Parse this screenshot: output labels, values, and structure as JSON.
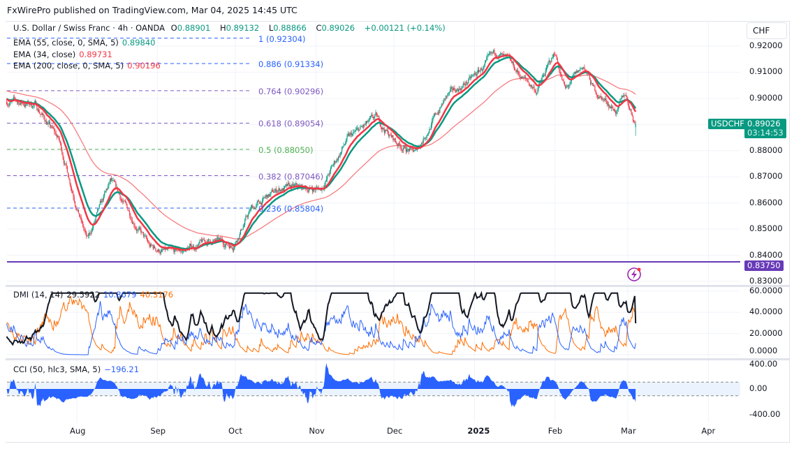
{
  "publisher_line": "FxWirePro published on TradingView.com, Mar 04, 2025 14:45 UTC",
  "symbol": {
    "title": "U.S. Dollar / Swiss Franc · 4h · OANDA",
    "open_label": "O",
    "open": "0.88901",
    "high_label": "H",
    "high": "0.89132",
    "low_label": "L",
    "low": "0.88866",
    "close_label": "C",
    "close": "0.89026",
    "change": "+0.00121 (+0.14%)",
    "ticker": "USDCHF",
    "last_price": "0.89026",
    "countdown": "03:14:53",
    "currency": "CHF"
  },
  "indicators": {
    "ema55": {
      "label": "EMA (55, close, 0, SMA, 5)",
      "value": "0.89840",
      "color": "#089981"
    },
    "ema34": {
      "label": "EMA (34, close)",
      "value": "0.89731",
      "color": "#f23645"
    },
    "ema200": {
      "label": "EMA (200, close, 0, SMA, 5)",
      "value": "0.90196",
      "color": "#f77c80"
    },
    "dmi": {
      "label": "DMI (14, 14)",
      "adx": "29.5922",
      "plus_di": "10.8679",
      "minus_di": "40.3176",
      "adx_color": "#131722",
      "plus_color": "#2962ff",
      "minus_color": "#ff6d00"
    },
    "cci": {
      "label": "CCI (50, hlc3, SMA, 5)",
      "value": "−196.21",
      "color": "#2962ff"
    }
  },
  "horizontal_line": {
    "price": "0.83750",
    "color": "#673ab7"
  },
  "fibonacci": [
    {
      "label": "1 (0.92304)",
      "price": 0.92304,
      "color": "#2962ff"
    },
    {
      "label": "0.886 (0.91334)",
      "price": 0.91334,
      "color": "#2962ff"
    },
    {
      "label": "0.764 (0.90296)",
      "price": 0.90296,
      "color": "#7e57c2"
    },
    {
      "label": "0.618 (0.89054)",
      "price": 0.89054,
      "color": "#7e57c2"
    },
    {
      "label": "0.5 (0.88050)",
      "price": 0.8805,
      "color": "#4caf50"
    },
    {
      "label": "0.382 (0.87046)",
      "price": 0.87046,
      "color": "#7e57c2"
    },
    {
      "label": "0.236 (0.85804)",
      "price": 0.85804,
      "color": "#2962ff"
    }
  ],
  "chart_data": {
    "type": "candlestick",
    "up_color": "#089981",
    "down_color": "#f23645",
    "price_axis": {
      "ticks": [
        "0.92000",
        "0.91000",
        "0.90000",
        "0.88000",
        "0.87000",
        "0.86000",
        "0.85000",
        "0.84000",
        "0.83000"
      ],
      "range": [
        0.83,
        0.92
      ]
    },
    "dmi_axis": {
      "ticks": [
        "60.0000",
        "40.0000",
        "20.0000",
        "0.0000"
      ],
      "range": [
        0,
        60
      ]
    },
    "cci_axis": {
      "ticks": [
        "400.00",
        "0.00",
        "-400.00"
      ],
      "range": [
        -400,
        400
      ],
      "bands": [
        -100,
        100
      ]
    },
    "time_axis": {
      "ticks": [
        {
          "label": "Aug",
          "date": "2024-08-01"
        },
        {
          "label": "Sep",
          "date": "2024-09-01"
        },
        {
          "label": "Oct",
          "date": "2024-10-01"
        },
        {
          "label": "Nov",
          "date": "2024-11-01"
        },
        {
          "label": "Dec",
          "date": "2024-12-01"
        },
        {
          "label": "2025",
          "date": "2025-01-01"
        },
        {
          "label": "Feb",
          "date": "2025-02-01"
        },
        {
          "label": "Mar",
          "date": "2025-03-01"
        },
        {
          "label": "Apr",
          "date": "2025-04-01"
        }
      ]
    },
    "close_path": [
      [
        "2024-07-05",
        0.8989
      ],
      [
        "2024-07-16",
        0.8976
      ],
      [
        "2024-07-25",
        0.8842
      ],
      [
        "2024-08-03",
        0.852
      ],
      [
        "2024-08-05",
        0.8455
      ],
      [
        "2024-08-14",
        0.868
      ],
      [
        "2024-08-22",
        0.855
      ],
      [
        "2024-08-29",
        0.843
      ],
      [
        "2024-09-07",
        0.8405
      ],
      [
        "2024-09-21",
        0.8455
      ],
      [
        "2024-09-30",
        0.844
      ],
      [
        "2024-10-07",
        0.8575
      ],
      [
        "2024-10-18",
        0.8655
      ],
      [
        "2024-11-03",
        0.8655
      ],
      [
        "2024-11-13",
        0.8842
      ],
      [
        "2024-11-24",
        0.8922
      ],
      [
        "2024-12-02",
        0.883
      ],
      [
        "2024-12-09",
        0.879
      ],
      [
        "2024-12-21",
        0.9002
      ],
      [
        "2025-01-01",
        0.9083
      ],
      [
        "2025-01-10",
        0.9176
      ],
      [
        "2025-01-19",
        0.9083
      ],
      [
        "2025-01-25",
        0.903
      ],
      [
        "2025-02-01",
        0.9176
      ],
      [
        "2025-02-05",
        0.903
      ],
      [
        "2025-02-12",
        0.9123
      ],
      [
        "2025-02-16",
        0.903
      ],
      [
        "2025-02-25",
        0.895
      ],
      [
        "2025-02-28",
        0.9016
      ],
      [
        "2025-03-04",
        0.89026
      ]
    ]
  }
}
